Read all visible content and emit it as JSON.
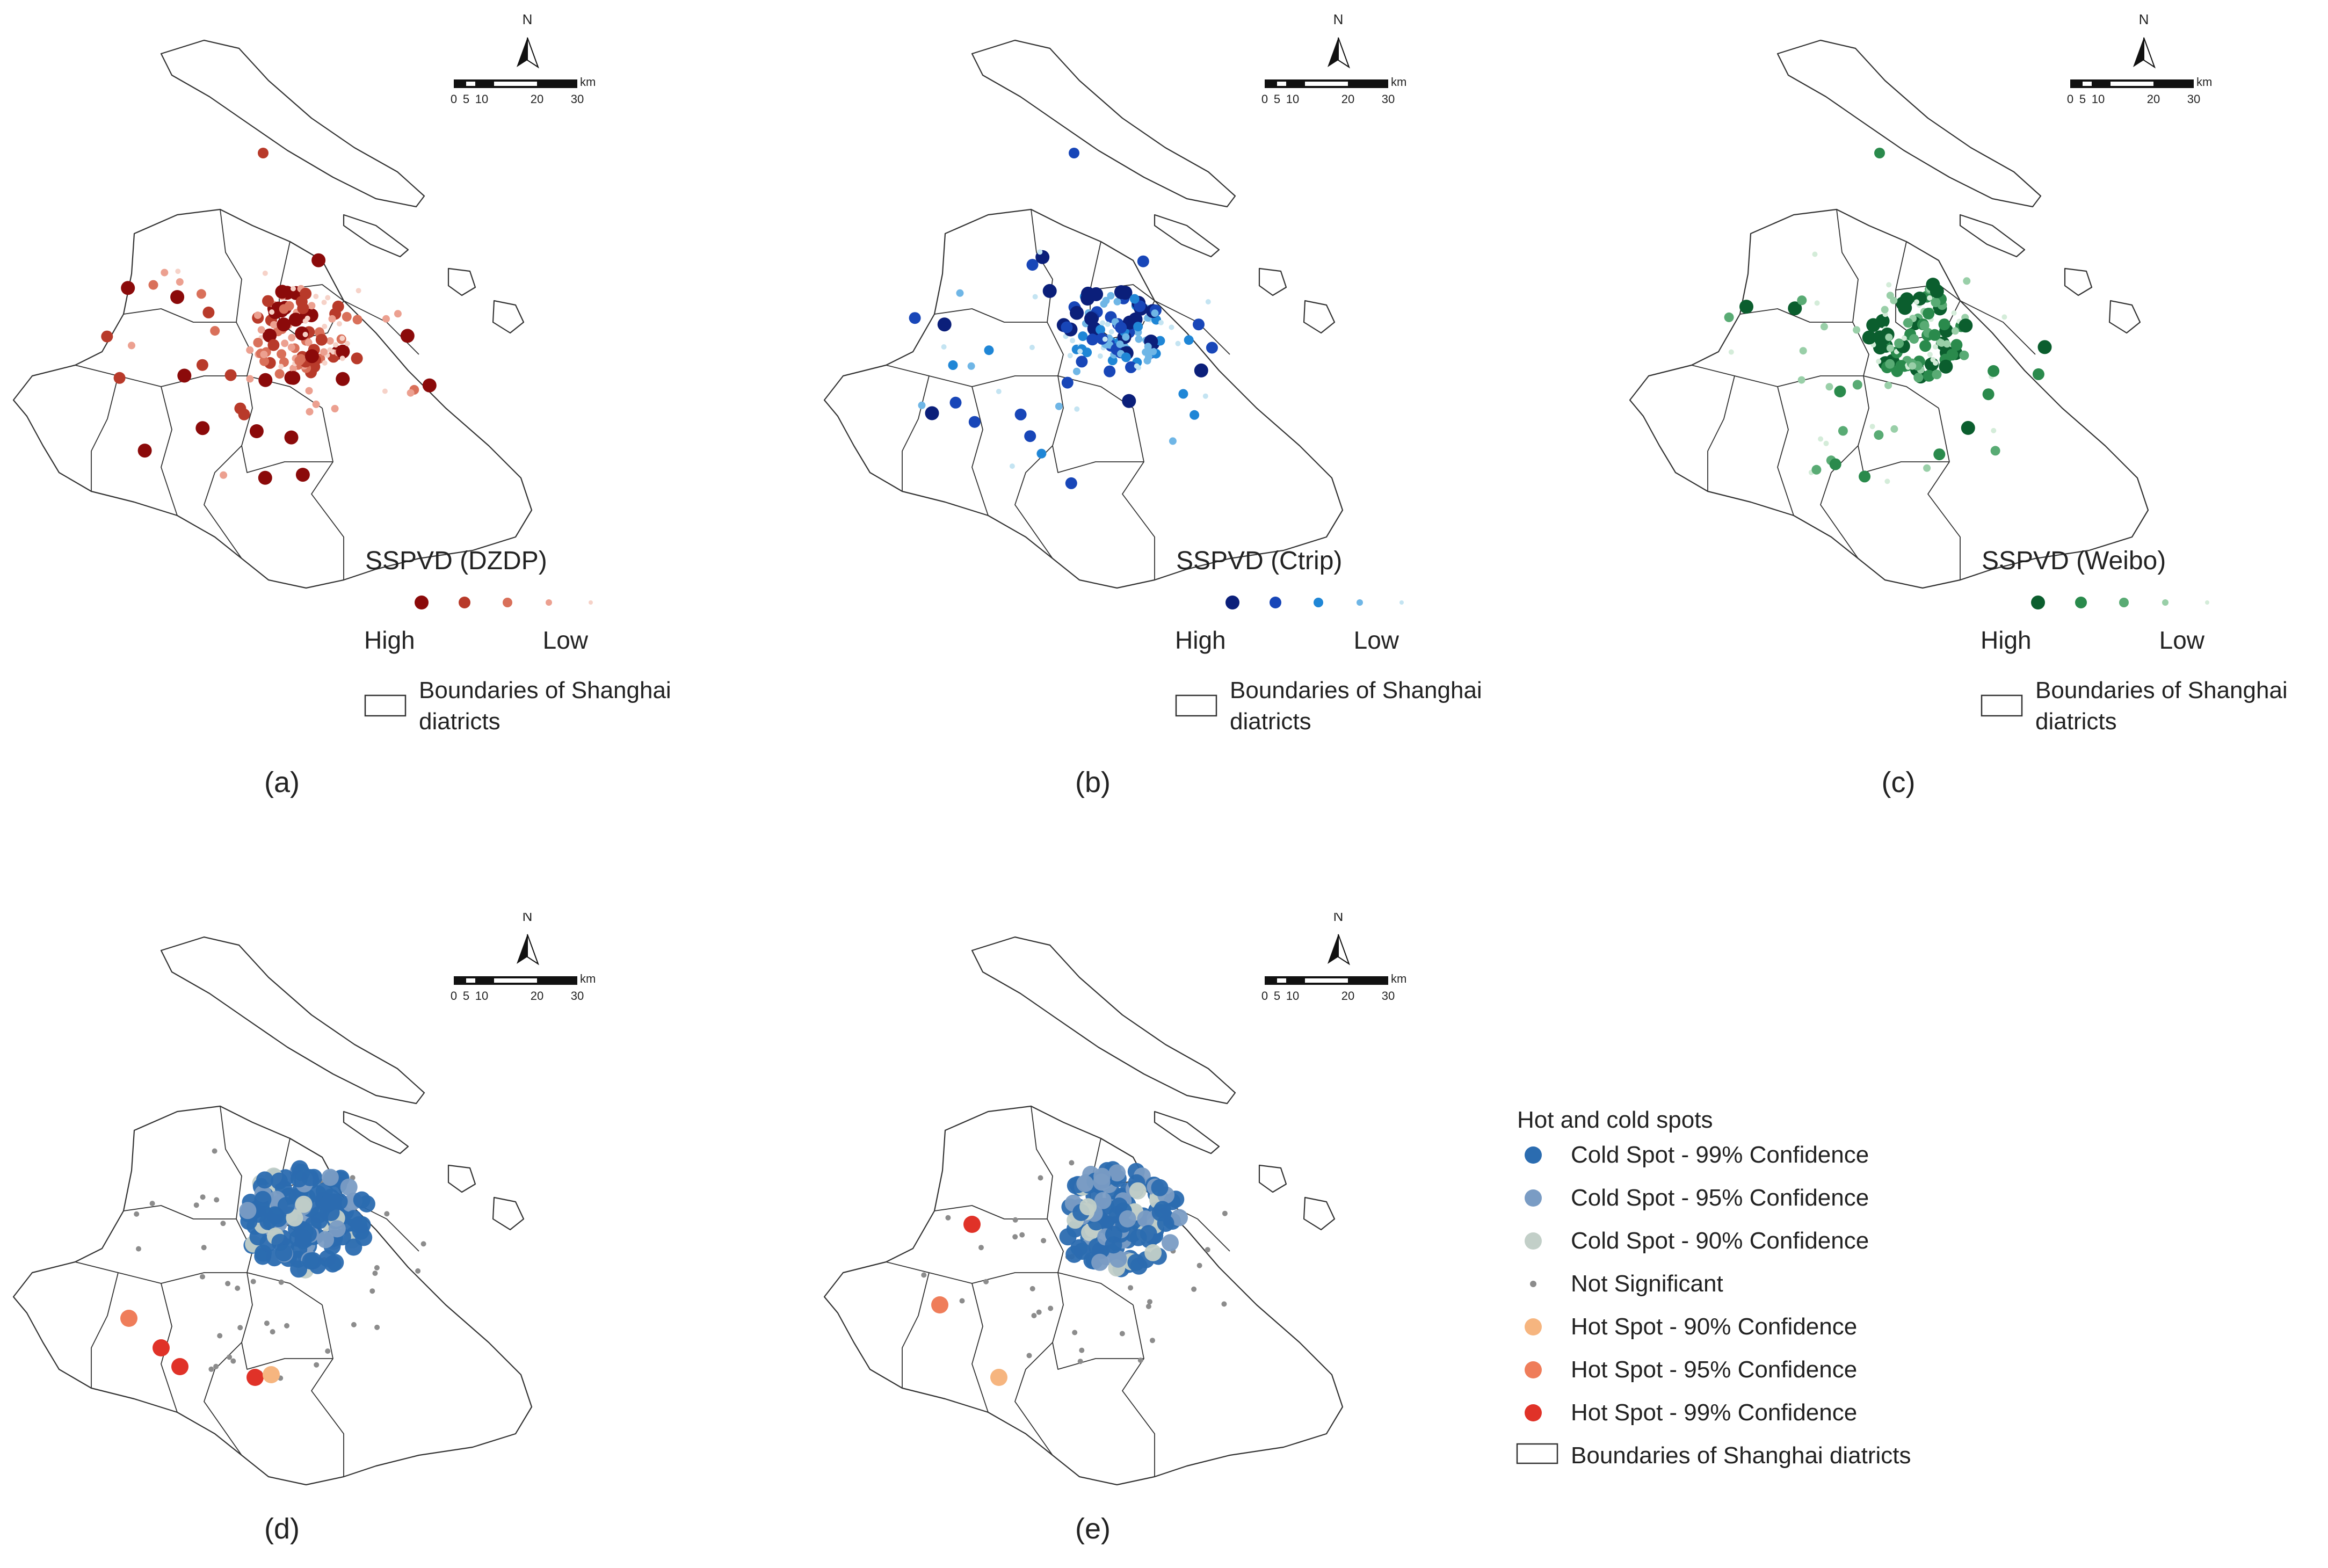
{
  "scale_bar": {
    "north": "N",
    "unit": "km",
    "ticks": [
      "0",
      "5",
      "10",
      "20",
      "30"
    ]
  },
  "panels": [
    {
      "id": "a",
      "label": "(a)",
      "legend_type": "gradient",
      "legend_title": "SSPVD (DZDP)",
      "legend_high": "High",
      "legend_low": "Low",
      "boundary_line1": "Boundaries of Shanghai",
      "boundary_line2": "diatricts",
      "colors": [
        "#8b0a0a",
        "#b83a2a",
        "#d9705a",
        "#eca090",
        "#f6d2c8"
      ]
    },
    {
      "id": "b",
      "label": "(b)",
      "legend_type": "gradient",
      "legend_title": "SSPVD (Ctrip)",
      "legend_high": "High",
      "legend_low": "Low",
      "boundary_line1": "Boundaries of Shanghai",
      "boundary_line2": "diatricts",
      "colors": [
        "#0b1f7a",
        "#1846b8",
        "#1f86d6",
        "#6fb6e6",
        "#c4e4f2"
      ]
    },
    {
      "id": "c",
      "label": "(c)",
      "legend_type": "gradient",
      "legend_title": "SSPVD (Weibo)",
      "legend_high": "High",
      "legend_low": "Low",
      "boundary_line1": "Boundaries of Shanghai",
      "boundary_line2": "diatricts",
      "colors": [
        "#0b5e2e",
        "#2a8a4c",
        "#59ab74",
        "#99cfa8",
        "#d4ecd9"
      ]
    },
    {
      "id": "d",
      "label": "(d)",
      "legend_type": "hotspot"
    },
    {
      "id": "e",
      "label": "(e)",
      "legend_type": "hotspot"
    }
  ],
  "hotspot_legend": {
    "title": "Hot and cold spots",
    "items": [
      {
        "label": "Cold Spot - 99% Confidence",
        "color": "#2b6cb0",
        "size": "large"
      },
      {
        "label": "Cold Spot - 95% Confidence",
        "color": "#7a9cc4",
        "size": "large"
      },
      {
        "label": "Cold Spot - 90% Confidence",
        "color": "#c2cfc8",
        "size": "large"
      },
      {
        "label": "Not Significant",
        "color": "#8c8c8c",
        "size": "small"
      },
      {
        "label": "Hot Spot - 90% Confidence",
        "color": "#f6b57f",
        "size": "large"
      },
      {
        "label": "Hot Spot - 95% Confidence",
        "color": "#ef7d5a",
        "size": "large"
      },
      {
        "label": "Hot Spot - 99% Confidence",
        "color": "#e03228",
        "size": "large"
      }
    ],
    "boundary": "Boundaries of Shanghai diatricts"
  }
}
